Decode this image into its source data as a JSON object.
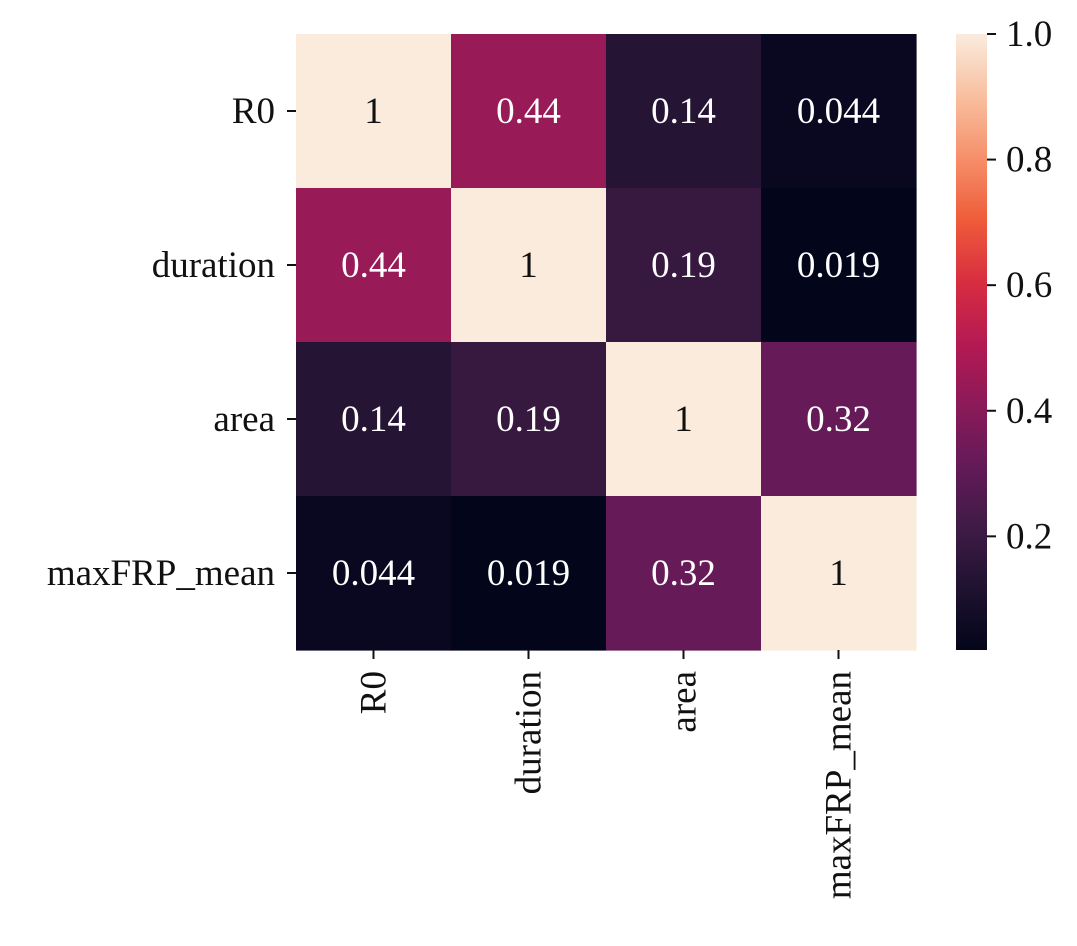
{
  "chart_data": {
    "type": "heatmap",
    "title": "",
    "xlabel": "",
    "ylabel": "",
    "rows": [
      "R0",
      "duration",
      "area",
      "maxFRP_mean"
    ],
    "columns": [
      "R0",
      "duration",
      "area",
      "maxFRP_mean"
    ],
    "values": [
      [
        1,
        0.44,
        0.14,
        0.044
      ],
      [
        0.44,
        1,
        0.19,
        0.019
      ],
      [
        0.14,
        0.19,
        1,
        0.32
      ],
      [
        0.044,
        0.019,
        0.32,
        1
      ]
    ],
    "cell_labels": [
      [
        "1",
        "0.44",
        "0.14",
        "0.044"
      ],
      [
        "0.44",
        "1",
        "0.19",
        "0.019"
      ],
      [
        "0.14",
        "0.19",
        "1",
        "0.32"
      ],
      [
        "0.044",
        "0.019",
        "0.32",
        "1"
      ]
    ],
    "colormap": "rocket",
    "vmin": 0.019,
    "vmax": 1.0,
    "colorbar": {
      "ticks": [
        0.2,
        0.4,
        0.6,
        0.8,
        1.0
      ],
      "tick_labels": [
        "0.2",
        "0.4",
        "0.6",
        "0.8",
        "1.0"
      ]
    }
  },
  "colors": {
    "background": "#ffffff",
    "text_dark": "#111111",
    "text_light": "#ffffff",
    "colormap_stops": [
      {
        "t": 0.0,
        "color": "#03051a"
      },
      {
        "t": 0.1,
        "color": "#1f1230"
      },
      {
        "t": 0.2,
        "color": "#3f1b45"
      },
      {
        "t": 0.3,
        "color": "#641a58"
      },
      {
        "t": 0.4,
        "color": "#8c1a59"
      },
      {
        "t": 0.5,
        "color": "#b51a52"
      },
      {
        "t": 0.6,
        "color": "#d92e40"
      },
      {
        "t": 0.7,
        "color": "#ef5d3a"
      },
      {
        "t": 0.8,
        "color": "#f6906b"
      },
      {
        "t": 0.9,
        "color": "#f8c0a0"
      },
      {
        "t": 1.0,
        "color": "#faebdd"
      }
    ]
  }
}
